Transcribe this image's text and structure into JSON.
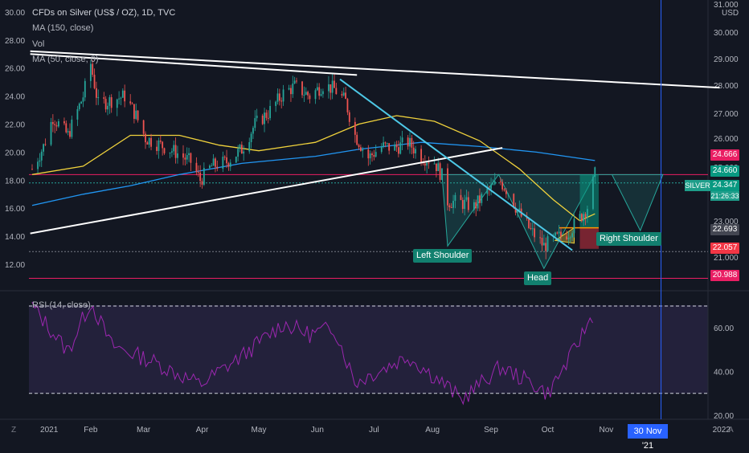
{
  "legend": {
    "title": "CFDs on Silver (US$ / OZ), 1D, TVC",
    "ma150": "MA (150, close)",
    "vol": "Vol",
    "ma50": "MA (50, close, 0)",
    "rsi": "RSI (14, close)"
  },
  "labels": {
    "left_shoulder": "Left Shoulder",
    "head": "Head",
    "right_shoulder": "Right Shoulder",
    "symbol": "SILVER",
    "countdown": "21:26:33",
    "date_marker": "30 Nov '21",
    "currency": "USD",
    "tz_icon": "Z",
    "auto_icon": "A"
  },
  "price_tags": [
    {
      "text": "24.666",
      "color": "#e91e63"
    },
    {
      "text": "24.660",
      "color": "#089981"
    },
    {
      "text": "24.347",
      "color": "#089981"
    },
    {
      "text": "22.693",
      "color": "#434651"
    },
    {
      "text": "22.057",
      "color": "#f23645"
    },
    {
      "text": "20.988",
      "color": "#e91e63"
    }
  ],
  "colors": {
    "up": "#26a69a",
    "down": "#ef5350",
    "ma50": "#f0d23c",
    "ma150": "#2196f3",
    "rsi": "#9c27b0",
    "trend": "#ffffff",
    "neckline": "#4dc8e6",
    "vline": "#2962ff"
  },
  "chart_data": {
    "type": "candlestick",
    "title": "CFDs on Silver (US$ / OZ), 1D, TVC",
    "left_axis": {
      "ticks": [
        "30.00",
        "28.00",
        "26.00",
        "24.00",
        "22.00",
        "20.00",
        "18.00",
        "16.00",
        "14.00",
        "12.00"
      ]
    },
    "right_axis": {
      "ticks": [
        "31.000",
        "30.000",
        "29.000",
        "28.000",
        "27.000",
        "26.000",
        "25.000",
        "23.000",
        "21.000"
      ]
    },
    "x_axis": {
      "ticks": [
        "2021",
        "Feb",
        "Mar",
        "Apr",
        "May",
        "Jun",
        "Jul",
        "Aug",
        "Sep",
        "Oct",
        "Nov",
        "30 Nov '21",
        "2022"
      ]
    },
    "close_path": [
      [
        "2021-01-01",
        18.8
      ],
      [
        "2021-01-07",
        20.4
      ],
      [
        "2021-01-12",
        22.5
      ],
      [
        "2021-01-20",
        21.2
      ],
      [
        "2021-01-28",
        24.0
      ],
      [
        "2021-02-01",
        26.3
      ],
      [
        "2021-02-05",
        23.4
      ],
      [
        "2021-02-12",
        23.7
      ],
      [
        "2021-02-19",
        24.0
      ],
      [
        "2021-02-25",
        22.6
      ],
      [
        "2021-03-02",
        21.0
      ],
      [
        "2021-03-10",
        20.5
      ],
      [
        "2021-03-18",
        20.0
      ],
      [
        "2021-03-26",
        19.3
      ],
      [
        "2021-03-31",
        18.0
      ],
      [
        "2021-04-06",
        19.0
      ],
      [
        "2021-04-14",
        19.3
      ],
      [
        "2021-04-22",
        20.2
      ],
      [
        "2021-04-29",
        22.0
      ],
      [
        "2021-05-06",
        22.8
      ],
      [
        "2021-05-14",
        24.2
      ],
      [
        "2021-05-20",
        24.7
      ],
      [
        "2021-05-28",
        24.0
      ],
      [
        "2021-06-04",
        24.8
      ],
      [
        "2021-06-10",
        24.5
      ],
      [
        "2021-06-16",
        23.6
      ],
      [
        "2021-06-21",
        21.2
      ],
      [
        "2021-06-28",
        19.6
      ],
      [
        "2021-07-05",
        20.4
      ],
      [
        "2021-07-12",
        20.3
      ],
      [
        "2021-07-19",
        20.7
      ],
      [
        "2021-07-26",
        19.7
      ],
      [
        "2021-08-02",
        19.3
      ],
      [
        "2021-08-06",
        18.3
      ],
      [
        "2021-08-09",
        16.5
      ],
      [
        "2021-08-16",
        16.4
      ],
      [
        "2021-08-23",
        16.1
      ],
      [
        "2021-08-30",
        17.2
      ],
      [
        "2021-09-06",
        17.9
      ],
      [
        "2021-09-10",
        17.2
      ],
      [
        "2021-09-16",
        15.6
      ],
      [
        "2021-09-22",
        14.4
      ],
      [
        "2021-09-29",
        13.3
      ],
      [
        "2021-10-05",
        13.8
      ],
      [
        "2021-10-12",
        14.3
      ],
      [
        "2021-10-18",
        15.3
      ],
      [
        "2021-10-22",
        16.1
      ],
      [
        "2021-10-26",
        18.4
      ]
    ],
    "ma50": [
      [
        "2021-01-01",
        18.4
      ],
      [
        "2021-01-28",
        19.0
      ],
      [
        "2021-02-22",
        21.2
      ],
      [
        "2021-03-20",
        21.2
      ],
      [
        "2021-04-10",
        20.5
      ],
      [
        "2021-05-01",
        20.1
      ],
      [
        "2021-05-31",
        20.7
      ],
      [
        "2021-06-23",
        22.0
      ],
      [
        "2021-07-13",
        22.6
      ],
      [
        "2021-08-02",
        22.2
      ],
      [
        "2021-08-26",
        20.8
      ],
      [
        "2021-09-16",
        18.8
      ],
      [
        "2021-10-04",
        16.6
      ],
      [
        "2021-10-18",
        15.1
      ],
      [
        "2021-10-26",
        15.6
      ]
    ],
    "ma150": [
      [
        "2021-01-01",
        16.2
      ],
      [
        "2021-01-28",
        17.0
      ],
      [
        "2021-02-22",
        17.6
      ],
      [
        "2021-03-20",
        18.4
      ],
      [
        "2021-04-22",
        19.2
      ],
      [
        "2021-05-31",
        19.7
      ],
      [
        "2021-06-23",
        20.2
      ],
      [
        "2021-07-26",
        20.7
      ],
      [
        "2021-08-26",
        20.4
      ],
      [
        "2021-09-25",
        20.0
      ],
      [
        "2021-10-26",
        19.4
      ]
    ],
    "rsi_path": [
      [
        "2021-01-01",
        70
      ],
      [
        "2021-01-20",
        49
      ],
      [
        "2021-02-01",
        72
      ],
      [
        "2021-02-12",
        52
      ],
      [
        "2021-03-05",
        45
      ],
      [
        "2021-03-31",
        34
      ],
      [
        "2021-04-22",
        47
      ],
      [
        "2021-05-14",
        62
      ],
      [
        "2021-05-28",
        57
      ],
      [
        "2021-06-10",
        60
      ],
      [
        "2021-06-21",
        35
      ],
      [
        "2021-07-05",
        41
      ],
      [
        "2021-07-19",
        47
      ],
      [
        "2021-08-09",
        33
      ],
      [
        "2021-08-16",
        27
      ],
      [
        "2021-09-06",
        42
      ],
      [
        "2021-09-22",
        35
      ],
      [
        "2021-10-01",
        30
      ],
      [
        "2021-10-12",
        45
      ],
      [
        "2021-10-26",
        68
      ]
    ],
    "rsi_levels": [
      70,
      30
    ],
    "rsi_axis": {
      "ticks": [
        "60.00",
        "40.00",
        "20.00"
      ]
    },
    "trendlines": [
      {
        "name": "upper",
        "from": [
          "2020-12-31",
          27.2
        ],
        "to": [
          "2021-12-31",
          24.6
        ]
      },
      {
        "name": "upper-short",
        "from": [
          "2020-12-31",
          27.0
        ],
        "to": [
          "2021-06-22",
          25.5
        ]
      },
      {
        "name": "lower",
        "from": [
          "2020-12-31",
          14.2
        ],
        "to": [
          "2021-09-07",
          20.3
        ]
      },
      {
        "name": "neckline",
        "from": [
          "2021-06-13",
          25.2
        ],
        "to": [
          "2021-10-14",
          13.0
        ]
      }
    ],
    "pattern_points": {
      "left_shoulder": [
        "2021-08-09",
        13.3
      ],
      "head": [
        "2021-09-29",
        11.7
      ],
      "right_shoulder": [
        "2021-11-19",
        14.4
      ],
      "projection_start": [
        "2021-11-04",
        18.4
      ],
      "projection_end": [
        "2021-12-01",
        18.4
      ]
    },
    "horizontal_levels": [
      {
        "name": "resistance",
        "value": 18.4,
        "color": "#e91e63"
      },
      {
        "name": "support",
        "value": 11.0,
        "color": "#e91e63"
      },
      {
        "name": "dotted-low",
        "value": 12.9,
        "color": "#787b86"
      },
      {
        "name": "dotted-mid",
        "value": 17.8,
        "color": "#26a69a"
      }
    ],
    "vertical_marker": "2021-11-30"
  }
}
